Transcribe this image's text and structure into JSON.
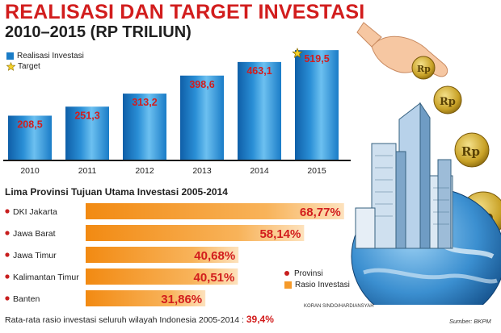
{
  "header": {
    "title": "REALISASI DAN TARGET INVESTASI",
    "subtitle": "2010–2015 (RP TRILIUN)"
  },
  "legend_top": {
    "realisasi": "Realisasi Investasi",
    "target": "Target"
  },
  "section2": {
    "title": "Lima Provinsi Tujuan Utama Investasi 2005-2014"
  },
  "legend_bottom": {
    "provinsi": "Provinsi",
    "rasio": "Rasio Investasi"
  },
  "footer": {
    "note": "Rata-rata rasio investasi seluruh wilayah Indonesia 2005-2014 : ",
    "average": "39,4%",
    "credit": "KORAN SINDO/HARDIANSYAH",
    "source": "Sumber: BKPM"
  },
  "colors": {
    "bar": "#1a7cc7",
    "bar_light": "#5fb3ea",
    "value_text": "#d21d1d",
    "hbar": "#f59a2a",
    "hbar_light": "#fde2bd",
    "dot": "#c81e1e",
    "coin": "#c9a227"
  },
  "icons": [
    "star-icon",
    "hand-icon",
    "coin-icon",
    "globe-icon",
    "buildings-icon"
  ],
  "chart_data": [
    {
      "type": "bar",
      "categories": [
        "2010",
        "2011",
        "2012",
        "2013",
        "2014",
        "2015"
      ],
      "values": [
        208.5,
        251.3,
        313.2,
        398.6,
        463.1,
        519.5
      ],
      "labels": [
        "208,5",
        "251,3",
        "313,2",
        "398,6",
        "463,1",
        "519,5"
      ],
      "target_category": "2015",
      "series": [
        {
          "name": "Realisasi Investasi",
          "values": [
            208.5,
            251.3,
            313.2,
            398.6,
            463.1,
            null
          ]
        },
        {
          "name": "Target",
          "values": [
            null,
            null,
            null,
            null,
            null,
            519.5
          ]
        }
      ]
    },
    {
      "type": "bar",
      "orientation": "horizontal",
      "categories": [
        "DKI Jakarta",
        "Jawa Barat",
        "Jawa Timur",
        "Kalimantan Timur",
        "Banten"
      ],
      "values": [
        68.77,
        58.14,
        40.68,
        40.51,
        31.86
      ],
      "labels": [
        "68,77%",
        "58,14%",
        "40,68%",
        "40,51%",
        "31,86%"
      ]
    }
  ]
}
